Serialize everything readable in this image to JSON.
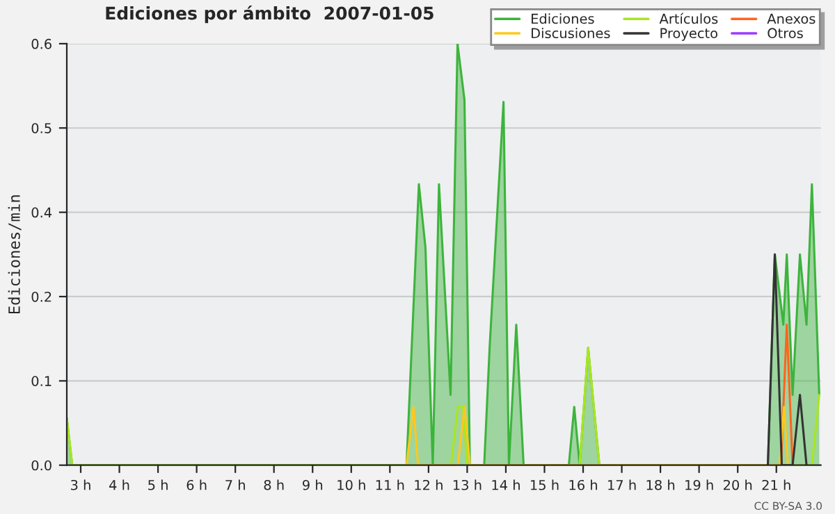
{
  "chart_data": {
    "type": "line",
    "title": "Ediciones por ámbito  2007-01-05",
    "ylabel": "Ediciones/min",
    "series": [
      {
        "name": "Ediciones",
        "type": "area",
        "color": "#3cb43c",
        "x": [
          2.64,
          2.78,
          11.43,
          11.75,
          11.92,
          12.11,
          12.27,
          12.57,
          12.75,
          12.93,
          13.07,
          13.44,
          13.58,
          13.94,
          14.08,
          14.27,
          14.46,
          15.63,
          15.77,
          15.91,
          16.13,
          16.42,
          20.78,
          20.96,
          21.18,
          21.27,
          21.42,
          21.61,
          21.78,
          21.92,
          22.11
        ],
        "values": [
          0.067,
          0,
          0,
          0.4,
          0.31,
          0,
          0.4,
          0.1,
          0.6,
          0.52,
          0,
          0,
          0.167,
          0.517,
          0,
          0.2,
          0,
          0,
          0.083,
          0,
          0.167,
          0,
          0,
          0.3,
          0.2,
          0.3,
          0.1,
          0.3,
          0.2,
          0.4,
          0.1
        ]
      },
      {
        "name": "Artículos",
        "color": "#aae61e",
        "x": [
          2.64,
          2.78,
          12.58,
          12.76,
          12.89,
          13.0,
          15.91,
          16.13,
          16.42,
          21.92,
          22.11
        ],
        "values": [
          0.067,
          0,
          0,
          0.083,
          0.083,
          0,
          0,
          0.167,
          0,
          0,
          0.1
        ]
      },
      {
        "name": "Anexos",
        "color": "#ff6420",
        "x": [
          21.12,
          21.27,
          21.42
        ],
        "values": [
          0,
          0.2,
          0
        ]
      },
      {
        "name": "Discusiones",
        "color": "#ffc81e",
        "x": [
          11.43,
          11.61,
          11.73,
          12.76,
          12.93,
          13.07,
          21.08,
          21.2,
          21.3
        ],
        "values": [
          0,
          0.083,
          0,
          0,
          0.083,
          0,
          0,
          0.083,
          0
        ]
      },
      {
        "name": "Proyecto",
        "color": "#333333",
        "x": [
          20.78,
          20.96,
          21.14,
          21.42,
          21.61,
          21.78
        ],
        "values": [
          0,
          0.3,
          0,
          0,
          0.1,
          0
        ]
      },
      {
        "name": "Otros",
        "color": "#9b3cff"
      }
    ],
    "xlim": [
      2.64,
      22.15
    ],
    "xticks": [
      {
        "value": 3,
        "label": "3 h"
      },
      {
        "value": 4,
        "label": "4 h"
      },
      {
        "value": 5,
        "label": "5 h"
      },
      {
        "value": 6,
        "label": "6 h"
      },
      {
        "value": 7,
        "label": "7 h"
      },
      {
        "value": 8,
        "label": "8 h"
      },
      {
        "value": 9,
        "label": "9 h"
      },
      {
        "value": 10,
        "label": "10 h"
      },
      {
        "value": 11,
        "label": "11 h"
      },
      {
        "value": 12,
        "label": "12 h"
      },
      {
        "value": 13,
        "label": "13 h"
      },
      {
        "value": 14,
        "label": "14 h"
      },
      {
        "value": 15,
        "label": "15 h"
      },
      {
        "value": 16,
        "label": "16 h"
      },
      {
        "value": 17,
        "label": "17 h"
      },
      {
        "value": 18,
        "label": "18 h"
      },
      {
        "value": 19,
        "label": "19 h"
      },
      {
        "value": 20,
        "label": "20 h"
      },
      {
        "value": 21,
        "label": "21 h"
      }
    ],
    "ylim": [
      0,
      0.6
    ],
    "yticks": [
      {
        "value": 0,
        "label": "0.0"
      },
      {
        "value": 0.12,
        "label": "0.1"
      },
      {
        "value": 0.24,
        "label": "0.2"
      },
      {
        "value": 0.36,
        "label": "0.4"
      },
      {
        "value": 0.48,
        "label": "0.5"
      },
      {
        "value": 0.6,
        "label": "0.6"
      }
    ],
    "grid": "y",
    "legend": "top right",
    "annotations": [
      "CC BY-SA 3.0"
    ]
  }
}
